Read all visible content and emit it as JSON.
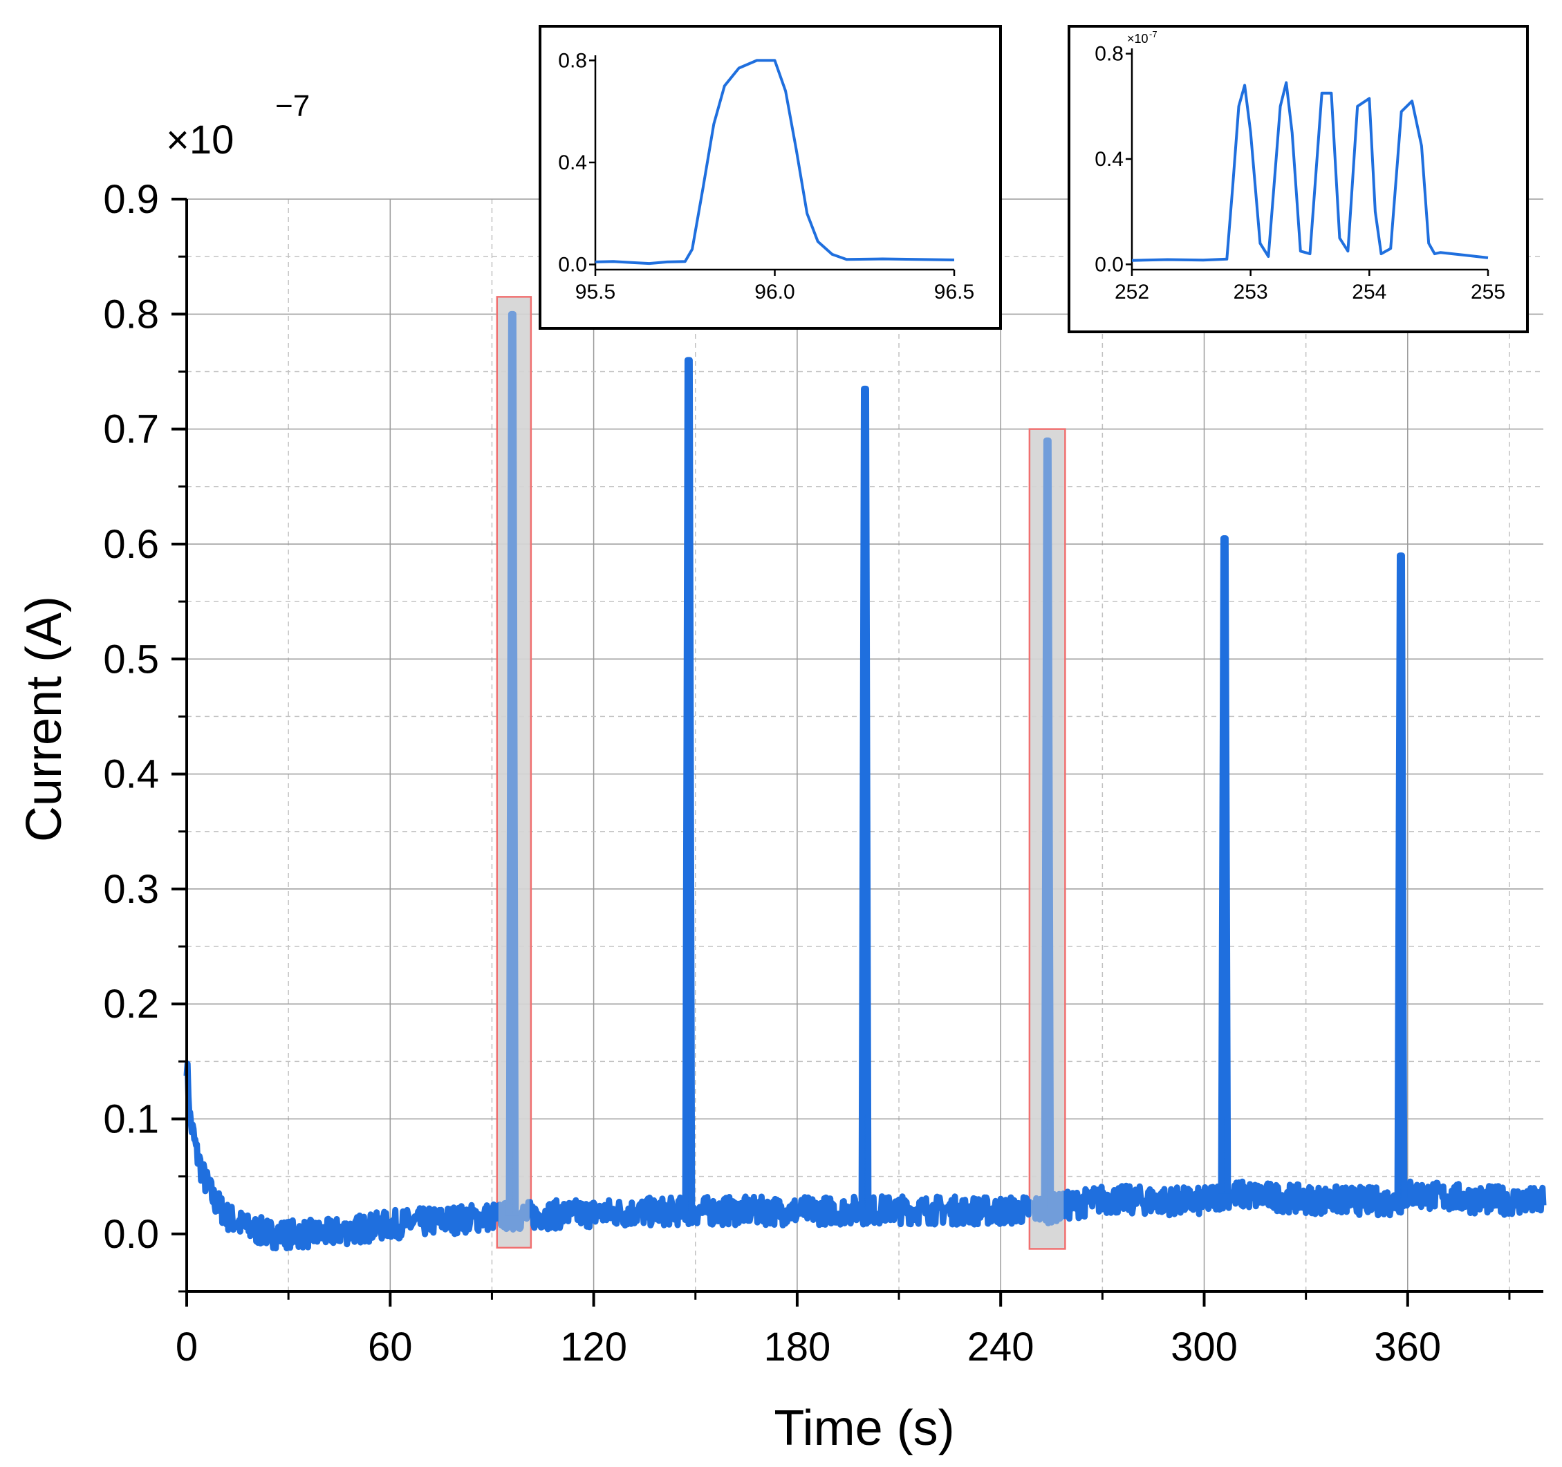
{
  "chart_data": [
    {
      "type": "line",
      "role": "main",
      "xlabel": "Time (s)",
      "ylabel": "Current (A)",
      "multiplier_label": "×10",
      "multiplier_exponent": "−7",
      "xlim": [
        0,
        400
      ],
      "ylim": [
        -0.05,
        0.9
      ],
      "xticks": [
        0,
        60,
        120,
        180,
        240,
        300,
        360
      ],
      "yticks": [
        0.0,
        0.1,
        0.2,
        0.3,
        0.4,
        0.5,
        0.6,
        0.7,
        0.8,
        0.9
      ],
      "xtick_labels": [
        "0",
        "60",
        "120",
        "180",
        "240",
        "300",
        "360"
      ],
      "ytick_labels": [
        "0.0",
        "0.1",
        "0.2",
        "0.3",
        "0.4",
        "0.5",
        "0.6",
        "0.7",
        "0.8",
        "0.9"
      ],
      "grid": true,
      "line_color": "#1f6fde",
      "baseline": {
        "x": [
          0,
          1,
          3,
          5,
          8,
          12,
          18,
          25,
          40,
          60,
          90,
          120,
          150,
          180,
          210,
          240,
          255,
          270,
          300,
          306,
          330,
          357,
          360,
          380,
          400
        ],
        "y": [
          0.15,
          0.1,
          0.07,
          0.05,
          0.03,
          0.015,
          0.005,
          0.0,
          0.0,
          0.008,
          0.015,
          0.018,
          0.02,
          0.02,
          0.021,
          0.02,
          0.022,
          0.03,
          0.028,
          0.035,
          0.03,
          0.028,
          0.035,
          0.03,
          0.028
        ]
      },
      "spikes": [
        {
          "t": 96,
          "peak": 0.8
        },
        {
          "t": 148,
          "peak": 0.76
        },
        {
          "t": 200,
          "peak": 0.735
        },
        {
          "t": 253.8,
          "peak": 0.69
        },
        {
          "t": 306,
          "peak": 0.605
        },
        {
          "t": 358,
          "peak": 0.59
        }
      ],
      "highlight_regions": [
        {
          "x": [
            91.5,
            101.5
          ],
          "y": [
            -0.012,
            0.815
          ]
        },
        {
          "x": [
            248.5,
            259.0
          ],
          "y": [
            -0.013,
            0.7
          ]
        }
      ]
    },
    {
      "type": "line",
      "role": "inset-1",
      "xlim": [
        95.5,
        96.5
      ],
      "ylim": [
        -0.02,
        0.82
      ],
      "xticks": [
        95.5,
        96.0,
        96.5
      ],
      "yticks": [
        0.0,
        0.4,
        0.8
      ],
      "xtick_labels": [
        "95.5",
        "96.0",
        "96.5"
      ],
      "ytick_labels": [
        "0.0",
        "0.4",
        "0.8"
      ],
      "x": [
        95.5,
        95.55,
        95.6,
        95.65,
        95.7,
        95.75,
        95.77,
        95.8,
        95.83,
        95.86,
        95.9,
        95.95,
        96.0,
        96.03,
        96.06,
        96.09,
        96.12,
        96.16,
        96.2,
        96.3,
        96.4,
        96.5
      ],
      "y": [
        0.01,
        0.012,
        0.008,
        0.004,
        0.01,
        0.012,
        0.06,
        0.3,
        0.55,
        0.7,
        0.77,
        0.8,
        0.8,
        0.68,
        0.45,
        0.2,
        0.09,
        0.04,
        0.02,
        0.022,
        0.02,
        0.018
      ]
    },
    {
      "type": "line",
      "role": "inset-2",
      "xlim": [
        252,
        255
      ],
      "ylim": [
        -0.02,
        0.82
      ],
      "xticks": [
        252,
        253,
        254,
        255
      ],
      "yticks": [
        0.0,
        0.4,
        0.8
      ],
      "xtick_labels": [
        "252",
        "253",
        "254",
        "255"
      ],
      "ytick_labels": [
        "0.0",
        "0.4",
        "0.8"
      ],
      "multiplier_label": "×10",
      "multiplier_exponent": "-7",
      "x": [
        252,
        252.3,
        252.6,
        252.8,
        252.85,
        252.9,
        252.95,
        253.0,
        253.08,
        253.15,
        253.25,
        253.3,
        253.35,
        253.42,
        253.5,
        253.6,
        253.68,
        253.75,
        253.82,
        253.9,
        254.0,
        254.05,
        254.1,
        254.18,
        254.27,
        254.36,
        254.44,
        254.5,
        254.55,
        254.6,
        254.8,
        255.0
      ],
      "y": [
        0.015,
        0.018,
        0.016,
        0.02,
        0.3,
        0.6,
        0.68,
        0.5,
        0.08,
        0.03,
        0.6,
        0.69,
        0.5,
        0.05,
        0.04,
        0.65,
        0.65,
        0.1,
        0.05,
        0.6,
        0.63,
        0.2,
        0.04,
        0.06,
        0.58,
        0.62,
        0.45,
        0.08,
        0.04,
        0.045,
        0.035,
        0.025
      ]
    }
  ]
}
